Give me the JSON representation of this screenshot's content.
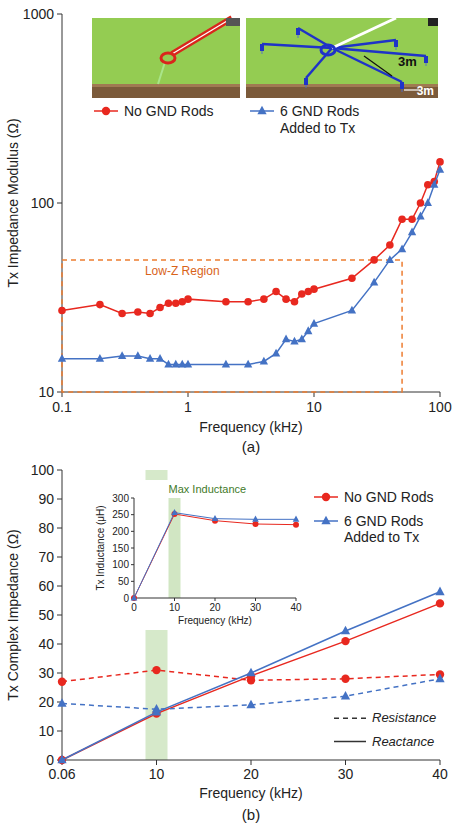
{
  "chart_data": [
    {
      "type": "line",
      "panel_label": "(a)",
      "x_label": "Frequency (kHz)",
      "y_label": "Tx Impedance Modulus (Ω)",
      "log": true,
      "xlim": [
        0.1,
        100
      ],
      "ylim": [
        10,
        1000
      ],
      "xticks": [
        0.1,
        1,
        10,
        100
      ],
      "yticks": [
        10,
        100,
        1000
      ],
      "x": [
        0.1,
        0.2,
        0.3,
        0.4,
        0.5,
        0.6,
        0.7,
        0.8,
        0.9,
        1,
        2,
        3,
        4,
        5,
        6,
        7,
        8,
        9,
        10,
        20,
        30,
        40,
        50,
        60,
        70,
        80,
        90,
        100
      ],
      "series": [
        {
          "name": "No GND Rods",
          "color": "#e8281f",
          "marker": "circle",
          "values": [
            27,
            29,
            26,
            26.5,
            26,
            28,
            29.5,
            29.5,
            30,
            31,
            30,
            30,
            31,
            34,
            31,
            30,
            33,
            34,
            35,
            40,
            50,
            60,
            82,
            82,
            100,
            125,
            130,
            165
          ]
        },
        {
          "name": "6 GND Rods Added to Tx",
          "color": "#4472c4",
          "marker": "triangle",
          "values": [
            15,
            15,
            15.5,
            15.5,
            15,
            15,
            14,
            14,
            14,
            14,
            14,
            14,
            14.5,
            16,
            19,
            18.5,
            19,
            21,
            23,
            27,
            38,
            50,
            57,
            70,
            85,
            100,
            125,
            150
          ]
        }
      ],
      "legend": "top",
      "annotations": [
        {
          "text": "Low-Z Region",
          "x": [
            0.1,
            50
          ],
          "y": [
            10,
            50
          ]
        }
      ],
      "inset_labels": [
        "3m",
        "3m"
      ]
    },
    {
      "type": "line",
      "panel_label": "(b)",
      "x_label": "Frequency (kHz)",
      "y_label": "Tx Complex Impedance (Ω)",
      "categories": [
        "0.06",
        "10",
        "20",
        "30",
        "40"
      ],
      "ylim": [
        0,
        100
      ],
      "yticks": [
        0,
        10,
        20,
        30,
        40,
        50,
        60,
        70,
        80,
        90,
        100
      ],
      "band": "10",
      "series": [
        {
          "name": "No GND Rods",
          "color": "#e8281f",
          "marker": "circle",
          "resistance": {
            "line_style": "dashed",
            "values": [
              27,
              31,
              27.5,
              28,
              29.5
            ]
          },
          "reactance": {
            "line_style": "solid",
            "values": [
              0,
              16,
              29,
              41,
              54
            ]
          }
        },
        {
          "name": "6 GND Rods Added to Tx",
          "color": "#4472c4",
          "marker": "triangle",
          "resistance": {
            "line_style": "dashed",
            "values": [
              19.5,
              17.5,
              19,
              22,
              28
            ]
          },
          "reactance": {
            "line_style": "solid",
            "values": [
              0,
              16.5,
              30,
              44.5,
              58
            ]
          }
        }
      ],
      "line_styles": [
        {
          "label": "Resistance",
          "line_style": "dashed"
        },
        {
          "label": "Reactance",
          "line_style": "solid"
        }
      ],
      "legend": "upper right"
    },
    {
      "type": "line",
      "x_label": "Frequency (kHz)",
      "y_label": "Tx Inductance (μH)",
      "xlim": [
        0,
        40
      ],
      "ylim": [
        0,
        300
      ],
      "xticks": [
        0,
        10,
        20,
        30,
        40
      ],
      "yticks": [
        0,
        50,
        100,
        150,
        200,
        250,
        300
      ],
      "x": [
        0,
        10,
        20,
        30,
        40
      ],
      "series": [
        {
          "color": "#e8281f",
          "marker": "circle",
          "values": [
            0,
            252,
            232,
            222,
            220
          ]
        },
        {
          "color": "#4472c4",
          "marker": "triangle",
          "values": [
            0,
            256,
            238,
            236,
            236
          ]
        }
      ],
      "annotations": [
        {
          "text": "Max Inductance",
          "x": 10
        }
      ]
    }
  ]
}
